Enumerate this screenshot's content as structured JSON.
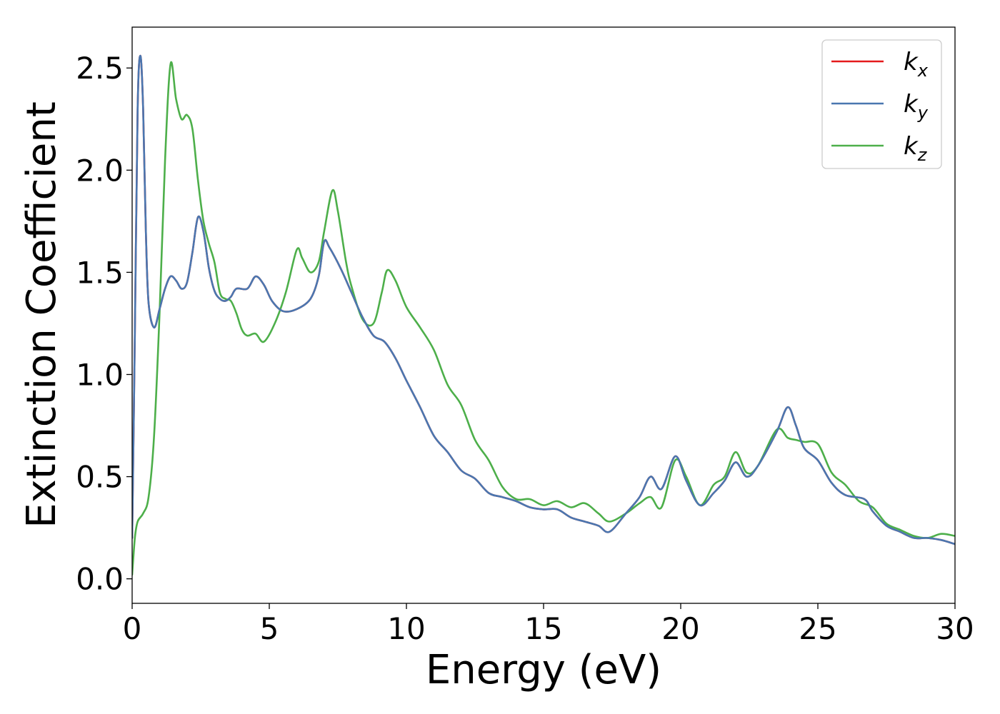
{
  "chart_data": {
    "type": "line",
    "xlabel": "Energy (eV)",
    "ylabel": "Extinction Coefficient",
    "xlim": [
      0,
      30
    ],
    "ylim": [
      -0.12,
      2.7
    ],
    "xticks": [
      0,
      5,
      10,
      15,
      20,
      25,
      30
    ],
    "yticks": [
      0.0,
      0.5,
      1.0,
      1.5,
      2.0,
      2.5
    ],
    "xtick_labels": [
      "0",
      "5",
      "10",
      "15",
      "20",
      "25",
      "30"
    ],
    "ytick_labels": [
      "0.0",
      "0.5",
      "1.0",
      "1.5",
      "2.0",
      "2.5"
    ],
    "grid": false,
    "legend_position": "top-right",
    "series": [
      {
        "name": "k",
        "subscript": "x",
        "color": "#e41a1c",
        "points": [
          [
            0,
            0.2
          ],
          [
            0.1,
            1.2
          ],
          [
            0.2,
            2.3
          ],
          [
            0.3,
            2.56
          ],
          [
            0.4,
            2.3
          ],
          [
            0.5,
            1.7
          ],
          [
            0.6,
            1.35
          ],
          [
            0.8,
            1.23
          ],
          [
            1.0,
            1.32
          ],
          [
            1.2,
            1.42
          ],
          [
            1.4,
            1.48
          ],
          [
            1.6,
            1.46
          ],
          [
            1.8,
            1.42
          ],
          [
            2.0,
            1.45
          ],
          [
            2.2,
            1.6
          ],
          [
            2.4,
            1.77
          ],
          [
            2.6,
            1.7
          ],
          [
            2.8,
            1.52
          ],
          [
            3.0,
            1.41
          ],
          [
            3.2,
            1.37
          ],
          [
            3.4,
            1.36
          ],
          [
            3.6,
            1.38
          ],
          [
            3.8,
            1.42
          ],
          [
            4.2,
            1.42
          ],
          [
            4.5,
            1.48
          ],
          [
            4.8,
            1.44
          ],
          [
            5.1,
            1.36
          ],
          [
            5.5,
            1.31
          ],
          [
            6.0,
            1.32
          ],
          [
            6.5,
            1.37
          ],
          [
            6.8,
            1.48
          ],
          [
            7.0,
            1.65
          ],
          [
            7.2,
            1.62
          ],
          [
            7.6,
            1.52
          ],
          [
            8.0,
            1.4
          ],
          [
            8.4,
            1.28
          ],
          [
            8.8,
            1.19
          ],
          [
            9.2,
            1.16
          ],
          [
            9.6,
            1.08
          ],
          [
            10.0,
            0.97
          ],
          [
            10.5,
            0.84
          ],
          [
            11.0,
            0.7
          ],
          [
            11.5,
            0.62
          ],
          [
            12.0,
            0.53
          ],
          [
            12.5,
            0.49
          ],
          [
            13.0,
            0.42
          ],
          [
            13.5,
            0.4
          ],
          [
            14.0,
            0.38
          ],
          [
            14.5,
            0.35
          ],
          [
            15.0,
            0.34
          ],
          [
            15.5,
            0.34
          ],
          [
            16.0,
            0.3
          ],
          [
            16.5,
            0.28
          ],
          [
            17.0,
            0.26
          ],
          [
            17.4,
            0.23
          ],
          [
            18.0,
            0.32
          ],
          [
            18.5,
            0.4
          ],
          [
            18.9,
            0.5
          ],
          [
            19.3,
            0.44
          ],
          [
            19.8,
            0.6
          ],
          [
            20.2,
            0.48
          ],
          [
            20.7,
            0.36
          ],
          [
            21.2,
            0.42
          ],
          [
            21.6,
            0.48
          ],
          [
            22.0,
            0.57
          ],
          [
            22.4,
            0.5
          ],
          [
            22.8,
            0.55
          ],
          [
            23.5,
            0.72
          ],
          [
            23.9,
            0.84
          ],
          [
            24.2,
            0.75
          ],
          [
            24.5,
            0.64
          ],
          [
            25.0,
            0.58
          ],
          [
            25.5,
            0.47
          ],
          [
            26.0,
            0.41
          ],
          [
            26.7,
            0.39
          ],
          [
            27.0,
            0.33
          ],
          [
            27.5,
            0.26
          ],
          [
            28.0,
            0.23
          ],
          [
            28.5,
            0.2
          ],
          [
            29.0,
            0.2
          ],
          [
            29.5,
            0.19
          ],
          [
            30.0,
            0.17
          ]
        ]
      },
      {
        "name": "k",
        "subscript": "y",
        "color": "#4a77b0",
        "points": [
          [
            0,
            0.2
          ],
          [
            0.1,
            1.2
          ],
          [
            0.2,
            2.3
          ],
          [
            0.3,
            2.56
          ],
          [
            0.4,
            2.3
          ],
          [
            0.5,
            1.7
          ],
          [
            0.6,
            1.35
          ],
          [
            0.8,
            1.23
          ],
          [
            1.0,
            1.32
          ],
          [
            1.2,
            1.42
          ],
          [
            1.4,
            1.48
          ],
          [
            1.6,
            1.46
          ],
          [
            1.8,
            1.42
          ],
          [
            2.0,
            1.45
          ],
          [
            2.2,
            1.6
          ],
          [
            2.4,
            1.77
          ],
          [
            2.6,
            1.7
          ],
          [
            2.8,
            1.52
          ],
          [
            3.0,
            1.41
          ],
          [
            3.2,
            1.37
          ],
          [
            3.4,
            1.36
          ],
          [
            3.6,
            1.38
          ],
          [
            3.8,
            1.42
          ],
          [
            4.2,
            1.42
          ],
          [
            4.5,
            1.48
          ],
          [
            4.8,
            1.44
          ],
          [
            5.1,
            1.36
          ],
          [
            5.5,
            1.31
          ],
          [
            6.0,
            1.32
          ],
          [
            6.5,
            1.37
          ],
          [
            6.8,
            1.48
          ],
          [
            7.0,
            1.65
          ],
          [
            7.2,
            1.62
          ],
          [
            7.6,
            1.52
          ],
          [
            8.0,
            1.4
          ],
          [
            8.4,
            1.28
          ],
          [
            8.8,
            1.19
          ],
          [
            9.2,
            1.16
          ],
          [
            9.6,
            1.08
          ],
          [
            10.0,
            0.97
          ],
          [
            10.5,
            0.84
          ],
          [
            11.0,
            0.7
          ],
          [
            11.5,
            0.62
          ],
          [
            12.0,
            0.53
          ],
          [
            12.5,
            0.49
          ],
          [
            13.0,
            0.42
          ],
          [
            13.5,
            0.4
          ],
          [
            14.0,
            0.38
          ],
          [
            14.5,
            0.35
          ],
          [
            15.0,
            0.34
          ],
          [
            15.5,
            0.34
          ],
          [
            16.0,
            0.3
          ],
          [
            16.5,
            0.28
          ],
          [
            17.0,
            0.26
          ],
          [
            17.4,
            0.23
          ],
          [
            18.0,
            0.32
          ],
          [
            18.5,
            0.4
          ],
          [
            18.9,
            0.5
          ],
          [
            19.3,
            0.44
          ],
          [
            19.8,
            0.6
          ],
          [
            20.2,
            0.48
          ],
          [
            20.7,
            0.36
          ],
          [
            21.2,
            0.42
          ],
          [
            21.6,
            0.48
          ],
          [
            22.0,
            0.57
          ],
          [
            22.4,
            0.5
          ],
          [
            22.8,
            0.55
          ],
          [
            23.5,
            0.72
          ],
          [
            23.9,
            0.84
          ],
          [
            24.2,
            0.75
          ],
          [
            24.5,
            0.64
          ],
          [
            25.0,
            0.58
          ],
          [
            25.5,
            0.47
          ],
          [
            26.0,
            0.41
          ],
          [
            26.7,
            0.39
          ],
          [
            27.0,
            0.33
          ],
          [
            27.5,
            0.26
          ],
          [
            28.0,
            0.23
          ],
          [
            28.5,
            0.2
          ],
          [
            29.0,
            0.2
          ],
          [
            29.5,
            0.19
          ],
          [
            30.0,
            0.17
          ]
        ]
      },
      {
        "name": "k",
        "subscript": "z",
        "color": "#4daf4a",
        "points": [
          [
            0,
            0.02
          ],
          [
            0.1,
            0.2
          ],
          [
            0.2,
            0.28
          ],
          [
            0.4,
            0.32
          ],
          [
            0.6,
            0.4
          ],
          [
            0.8,
            0.7
          ],
          [
            1.0,
            1.3
          ],
          [
            1.2,
            2.05
          ],
          [
            1.4,
            2.52
          ],
          [
            1.6,
            2.35
          ],
          [
            1.8,
            2.25
          ],
          [
            2.0,
            2.27
          ],
          [
            2.2,
            2.2
          ],
          [
            2.4,
            1.95
          ],
          [
            2.6,
            1.75
          ],
          [
            2.8,
            1.64
          ],
          [
            3.0,
            1.55
          ],
          [
            3.2,
            1.4
          ],
          [
            3.4,
            1.37
          ],
          [
            3.6,
            1.36
          ],
          [
            3.8,
            1.3
          ],
          [
            4.0,
            1.22
          ],
          [
            4.2,
            1.19
          ],
          [
            4.5,
            1.2
          ],
          [
            4.8,
            1.16
          ],
          [
            5.2,
            1.25
          ],
          [
            5.6,
            1.4
          ],
          [
            6.0,
            1.61
          ],
          [
            6.2,
            1.57
          ],
          [
            6.5,
            1.5
          ],
          [
            6.8,
            1.55
          ],
          [
            7.0,
            1.7
          ],
          [
            7.3,
            1.9
          ],
          [
            7.5,
            1.8
          ],
          [
            7.8,
            1.55
          ],
          [
            8.0,
            1.43
          ],
          [
            8.4,
            1.27
          ],
          [
            8.8,
            1.25
          ],
          [
            9.1,
            1.4
          ],
          [
            9.3,
            1.51
          ],
          [
            9.6,
            1.46
          ],
          [
            10.0,
            1.33
          ],
          [
            10.5,
            1.23
          ],
          [
            11.0,
            1.12
          ],
          [
            11.5,
            0.95
          ],
          [
            12.0,
            0.85
          ],
          [
            12.5,
            0.68
          ],
          [
            13.0,
            0.58
          ],
          [
            13.5,
            0.45
          ],
          [
            14.0,
            0.39
          ],
          [
            14.5,
            0.39
          ],
          [
            15.0,
            0.36
          ],
          [
            15.5,
            0.38
          ],
          [
            16.0,
            0.35
          ],
          [
            16.5,
            0.37
          ],
          [
            17.0,
            0.32
          ],
          [
            17.4,
            0.28
          ],
          [
            18.0,
            0.32
          ],
          [
            18.5,
            0.37
          ],
          [
            18.9,
            0.4
          ],
          [
            19.3,
            0.35
          ],
          [
            19.8,
            0.58
          ],
          [
            20.2,
            0.5
          ],
          [
            20.7,
            0.36
          ],
          [
            21.2,
            0.46
          ],
          [
            21.6,
            0.5
          ],
          [
            22.0,
            0.62
          ],
          [
            22.4,
            0.52
          ],
          [
            22.8,
            0.55
          ],
          [
            23.5,
            0.73
          ],
          [
            23.9,
            0.69
          ],
          [
            24.2,
            0.68
          ],
          [
            24.5,
            0.67
          ],
          [
            25.0,
            0.66
          ],
          [
            25.5,
            0.52
          ],
          [
            26.0,
            0.46
          ],
          [
            26.5,
            0.38
          ],
          [
            27.0,
            0.35
          ],
          [
            27.5,
            0.27
          ],
          [
            28.0,
            0.24
          ],
          [
            28.5,
            0.21
          ],
          [
            29.0,
            0.2
          ],
          [
            29.5,
            0.22
          ],
          [
            30.0,
            0.21
          ]
        ]
      }
    ]
  }
}
